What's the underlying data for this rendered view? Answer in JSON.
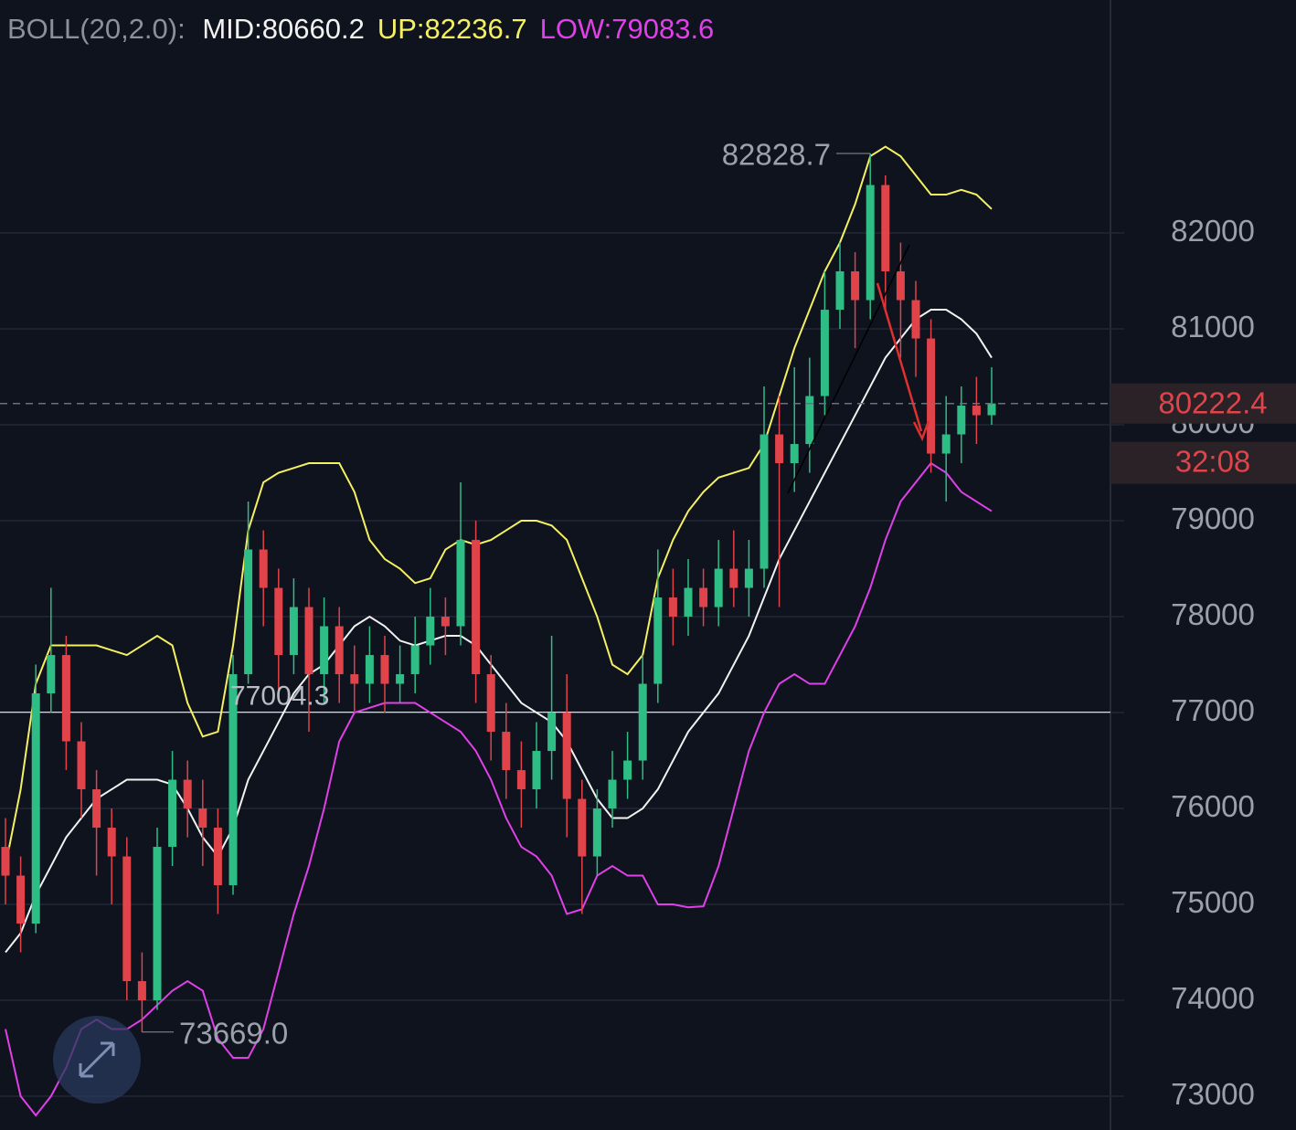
{
  "chart_data": {
    "type": "candlestick",
    "indicator": "BOLL(20,2.0):",
    "open": [
      75600,
      75300,
      74800,
      77200,
      77600,
      76700,
      76200,
      75800,
      75500,
      74200,
      74000,
      75600,
      76300,
      76000,
      75800,
      75200,
      77400,
      78700,
      78300,
      77600,
      78100,
      77400,
      77900,
      77400,
      77300,
      77600,
      77300,
      77400,
      77700,
      78000,
      77900,
      78800,
      77400,
      76800,
      76400,
      76200,
      76600,
      77000,
      76100,
      75500,
      76000,
      76300,
      76500,
      77300,
      78200,
      78000,
      78300,
      78100,
      78500,
      78300,
      78500,
      79900,
      79600,
      79800,
      80300,
      81200,
      81600,
      81300,
      82500,
      81600,
      81300,
      80900,
      79700,
      79900,
      80200,
      80100
    ],
    "high": [
      75900,
      75500,
      77500,
      78300,
      77800,
      76900,
      76400,
      76000,
      75700,
      74500,
      75800,
      76600,
      76500,
      76300,
      76000,
      77600,
      79200,
      78900,
      78500,
      78400,
      78300,
      78200,
      78100,
      77700,
      77900,
      77800,
      77700,
      78000,
      78300,
      78200,
      79400,
      79000,
      77600,
      77100,
      76700,
      76900,
      77800,
      77400,
      76300,
      76200,
      76600,
      76800,
      77600,
      78700,
      78500,
      78600,
      78500,
      78800,
      78900,
      78800,
      80400,
      80300,
      80600,
      80700,
      81600,
      81900,
      81800,
      82828.7,
      82600,
      81900,
      81500,
      81100,
      80300,
      80400,
      80500,
      80600
    ],
    "low": [
      75000,
      74500,
      74700,
      77000,
      76400,
      75900,
      75300,
      75000,
      74000,
      73669,
      73900,
      75400,
      75700,
      75400,
      74900,
      75100,
      77300,
      77900,
      77200,
      77400,
      76800,
      77100,
      77100,
      77000,
      77100,
      77000,
      77100,
      77200,
      77500,
      77600,
      77700,
      77100,
      76500,
      76100,
      75800,
      76000,
      76300,
      75700,
      74900,
      75300,
      75800,
      76100,
      76300,
      77100,
      77700,
      77800,
      77900,
      77900,
      78100,
      78000,
      78300,
      78100,
      79300,
      79500,
      80100,
      81000,
      80800,
      81100,
      81200,
      80700,
      80500,
      79500,
      79200,
      79600,
      79800,
      80000
    ],
    "close": [
      75300,
      74800,
      77200,
      77600,
      76700,
      76200,
      75800,
      75500,
      74200,
      74000,
      75600,
      76300,
      76000,
      75800,
      75200,
      77400,
      78700,
      78300,
      77600,
      78100,
      77400,
      77900,
      77400,
      77300,
      77600,
      77300,
      77400,
      77700,
      78000,
      77900,
      78800,
      77400,
      76800,
      76400,
      76200,
      76600,
      77000,
      76100,
      75500,
      76000,
      76300,
      76500,
      77300,
      78200,
      78000,
      78300,
      78100,
      78500,
      78300,
      78500,
      79900,
      79600,
      79800,
      80300,
      81200,
      81600,
      81300,
      82500,
      81600,
      81300,
      80900,
      79700,
      79900,
      80200,
      80100,
      80222.4
    ],
    "up_color": "#2ebd85",
    "down_color": "#e0434a",
    "series": [
      {
        "label": "MID:80660.2",
        "color": "#f2f2f2",
        "values": [
          74500,
          74700,
          75100,
          75400,
          75700,
          75900,
          76100,
          76200,
          76300,
          76300,
          76300,
          76250,
          76000,
          75700,
          75500,
          75800,
          76300,
          76600,
          76900,
          77200,
          77400,
          77500,
          77700,
          77900,
          78000,
          77900,
          77750,
          77700,
          77750,
          77800,
          77800,
          77700,
          77500,
          77300,
          77100,
          77000,
          76900,
          76700,
          76400,
          76100,
          75900,
          75900,
          76000,
          76200,
          76500,
          76800,
          77000,
          77200,
          77500,
          77800,
          78200,
          78600,
          78900,
          79200,
          79500,
          79800,
          80100,
          80400,
          80700,
          80900,
          81100,
          81200,
          81200,
          81100,
          80950,
          80700
        ]
      },
      {
        "label": "UP:82236.7",
        "color": "#f5f062",
        "values": [
          75400,
          76200,
          77300,
          77700,
          77700,
          77700,
          77700,
          77650,
          77600,
          77700,
          77800,
          77700,
          77100,
          76750,
          76800,
          77700,
          78900,
          79400,
          79500,
          79550,
          79600,
          79600,
          79600,
          79300,
          78800,
          78600,
          78500,
          78350,
          78400,
          78700,
          78800,
          78750,
          78800,
          78900,
          79000,
          79000,
          78950,
          78800,
          78400,
          78000,
          77500,
          77400,
          77600,
          78400,
          78800,
          79100,
          79300,
          79450,
          79500,
          79550,
          79800,
          80300,
          80800,
          81200,
          81600,
          81900,
          82300,
          82800,
          82900,
          82800,
          82600,
          82400,
          82400,
          82450,
          82400,
          82250
        ]
      },
      {
        "label": "LOW:79083.6",
        "color": "#e040e8",
        "values": [
          73700,
          73000,
          72800,
          73000,
          73300,
          73700,
          73800,
          73700,
          73700,
          73800,
          73950,
          74100,
          74200,
          74100,
          73600,
          73400,
          73400,
          73700,
          74300,
          74900,
          75400,
          76000,
          76700,
          77000,
          77050,
          77100,
          77100,
          77100,
          77000,
          76900,
          76800,
          76600,
          76300,
          75900,
          75600,
          75500,
          75300,
          74900,
          74950,
          75300,
          75400,
          75300,
          75300,
          75000,
          75000,
          74970,
          74980,
          75400,
          76000,
          76600,
          77000,
          77300,
          77400,
          77300,
          77300,
          77600,
          77900,
          78300,
          78800,
          79200,
          79400,
          79600,
          79500,
          79300,
          79200,
          79100
        ]
      }
    ],
    "max_label": 82828.7,
    "min_label": {
      "value": 73669,
      "label": "73669.0"
    },
    "hline": 77004.3,
    "last_price": 80222.4,
    "countdown": "32:08",
    "ylim": [
      72648,
      84429
    ],
    "yticks": [
      73000,
      74000,
      75000,
      76000,
      77000,
      78000,
      79000,
      80000,
      81000,
      82000
    ],
    "grid": true
  }
}
